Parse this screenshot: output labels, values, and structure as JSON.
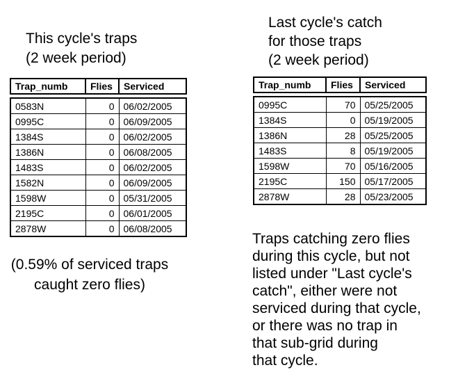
{
  "colors": {
    "background": "#ffffff",
    "text": "#000000",
    "table_border": "#000000"
  },
  "left": {
    "title": [
      "This cycle's traps",
      "(2 week period)"
    ],
    "table": {
      "columns": [
        "Trap_numb",
        "Flies",
        "Serviced"
      ],
      "rows": [
        [
          "0583N",
          "0",
          "06/02/2005"
        ],
        [
          "0995C",
          "0",
          "06/09/2005"
        ],
        [
          "1384S",
          "0",
          "06/02/2005"
        ],
        [
          "1386N",
          "0",
          "06/08/2005"
        ],
        [
          "1483S",
          "0",
          "06/02/2005"
        ],
        [
          "1582N",
          "0",
          "06/09/2005"
        ],
        [
          "1598W",
          "0",
          "05/31/2005"
        ],
        [
          "2195C",
          "0",
          "06/01/2005"
        ],
        [
          "2878W",
          "0",
          "06/08/2005"
        ]
      ]
    },
    "note": [
      "(0.59% of serviced traps",
      "caught zero flies)"
    ]
  },
  "right": {
    "title": [
      "Last cycle's catch",
      "for those traps",
      "(2 week period)"
    ],
    "table": {
      "columns": [
        "Trap_numb",
        "Flies",
        "Serviced"
      ],
      "rows": [
        [
          "0995C",
          "70",
          "05/25/2005"
        ],
        [
          "1384S",
          "0",
          "05/19/2005"
        ],
        [
          "1386N",
          "28",
          "05/25/2005"
        ],
        [
          "1483S",
          "8",
          "05/19/2005"
        ],
        [
          "1598W",
          "70",
          "05/16/2005"
        ],
        [
          "2195C",
          "150",
          "05/17/2005"
        ],
        [
          "2878W",
          "28",
          "05/23/2005"
        ]
      ]
    },
    "paragraph": [
      "Traps catching zero flies",
      "during this cycle, but not",
      "listed under \"Last cycle's",
      "catch\", either were not",
      "serviced during that cycle,",
      "or there was no trap in",
      "that sub-grid during",
      "that cycle."
    ]
  }
}
